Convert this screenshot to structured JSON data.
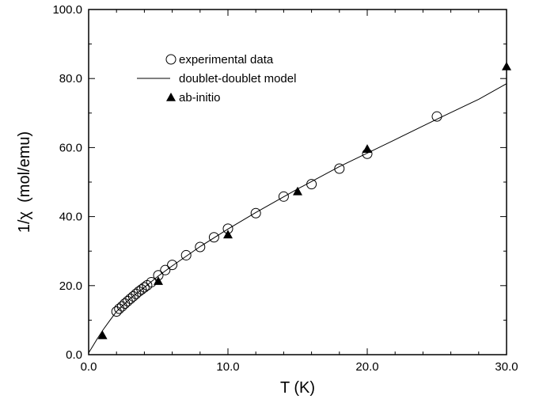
{
  "chart_data": {
    "type": "scatter",
    "title": "",
    "xlabel": "T (K)",
    "ylabel": "1/χ  (mol/emu)",
    "xlim": [
      0,
      30
    ],
    "ylim": [
      0,
      100
    ],
    "x_ticks": [
      "0.0",
      "10.0",
      "20.0",
      "30.0"
    ],
    "y_ticks": [
      "0.0",
      "20.0",
      "40.0",
      "60.0",
      "80.0",
      "100.0"
    ],
    "grid": false,
    "legend_position": "top-left",
    "series": [
      {
        "name": "experimental data",
        "marker": "open-circle",
        "x": [
          2.0,
          2.2,
          2.4,
          2.6,
          2.8,
          3.0,
          3.2,
          3.4,
          3.6,
          3.8,
          4.0,
          4.2,
          4.5,
          5.0,
          5.5,
          6.0,
          7.0,
          8.0,
          9.0,
          10.0,
          12.0,
          14.0,
          16.0,
          18.0,
          20.0,
          25.0
        ],
        "y": [
          12.5,
          13.3,
          14.0,
          14.8,
          15.5,
          16.2,
          16.9,
          17.6,
          18.3,
          18.9,
          19.5,
          20.1,
          21.0,
          23.0,
          24.5,
          26.0,
          28.8,
          31.2,
          34.0,
          36.5,
          41.0,
          45.8,
          49.4,
          53.9,
          58.2,
          69.0
        ]
      },
      {
        "name": "doublet-doublet model",
        "marker": "line",
        "x": [
          0.0,
          0.3,
          0.6,
          1.0,
          1.5,
          2.0,
          3.0,
          4.0,
          5.0,
          6.0,
          8.0,
          10.0,
          12.0,
          15.0,
          18.0,
          20.0,
          22.0,
          25.0,
          28.0,
          30.0
        ],
        "y": [
          0.5,
          2.5,
          4.5,
          7.0,
          9.8,
          12.5,
          16.3,
          19.5,
          22.8,
          25.7,
          31.3,
          36.4,
          41.2,
          48.0,
          54.5,
          58.4,
          62.3,
          68.2,
          74.0,
          78.5
        ]
      },
      {
        "name": "ab-initio",
        "marker": "filled-triangle",
        "x": [
          1.0,
          5.0,
          10.0,
          15.0,
          20.0,
          30.0
        ],
        "y": [
          5.6,
          21.3,
          34.8,
          47.3,
          59.6,
          83.5
        ]
      }
    ]
  }
}
